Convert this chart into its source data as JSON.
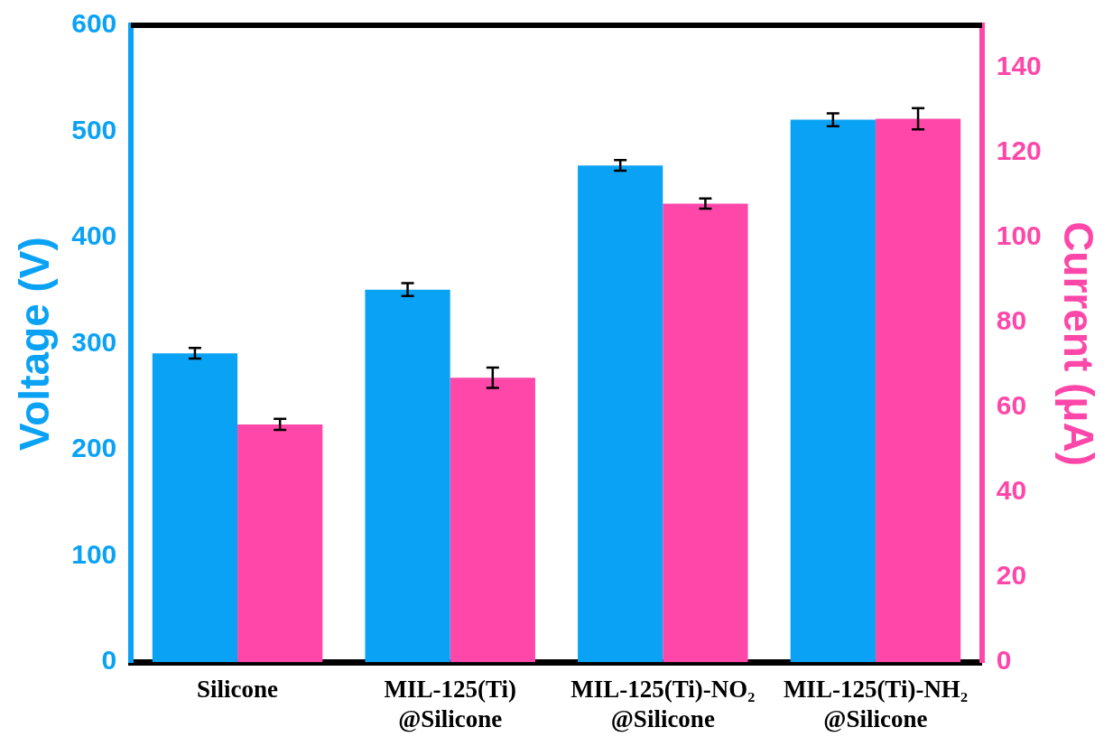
{
  "chart_data": {
    "type": "bar",
    "ylabel": "Voltage (V)",
    "y2label": "Current (μA)",
    "categories": [
      "Silicone",
      "MIL-125(Ti)\n@Silicone",
      "MIL-125(Ti)-NO₂\n@Silicone",
      "MIL-125(Ti)-NH₂\n@Silicone"
    ],
    "series": [
      {
        "color": "#0aa2f5",
        "values": [
          291,
          351,
          468,
          511
        ],
        "errors": [
          5,
          6,
          5,
          6
        ],
        "axis": "y"
      },
      {
        "color": "#ff47a9",
        "values": [
          56,
          67,
          108,
          128
        ],
        "errors": [
          1.3,
          2.4,
          1.2,
          2.5
        ],
        "axis": "y2"
      }
    ],
    "ylim": [
      0,
      600
    ],
    "yticks": [
      0,
      100,
      200,
      300,
      400,
      500,
      600
    ],
    "y2lim": [
      0,
      150
    ],
    "y2ticks": [
      0,
      20,
      40,
      60,
      80,
      100,
      120,
      140
    ],
    "grid": false,
    "legend": false
  }
}
